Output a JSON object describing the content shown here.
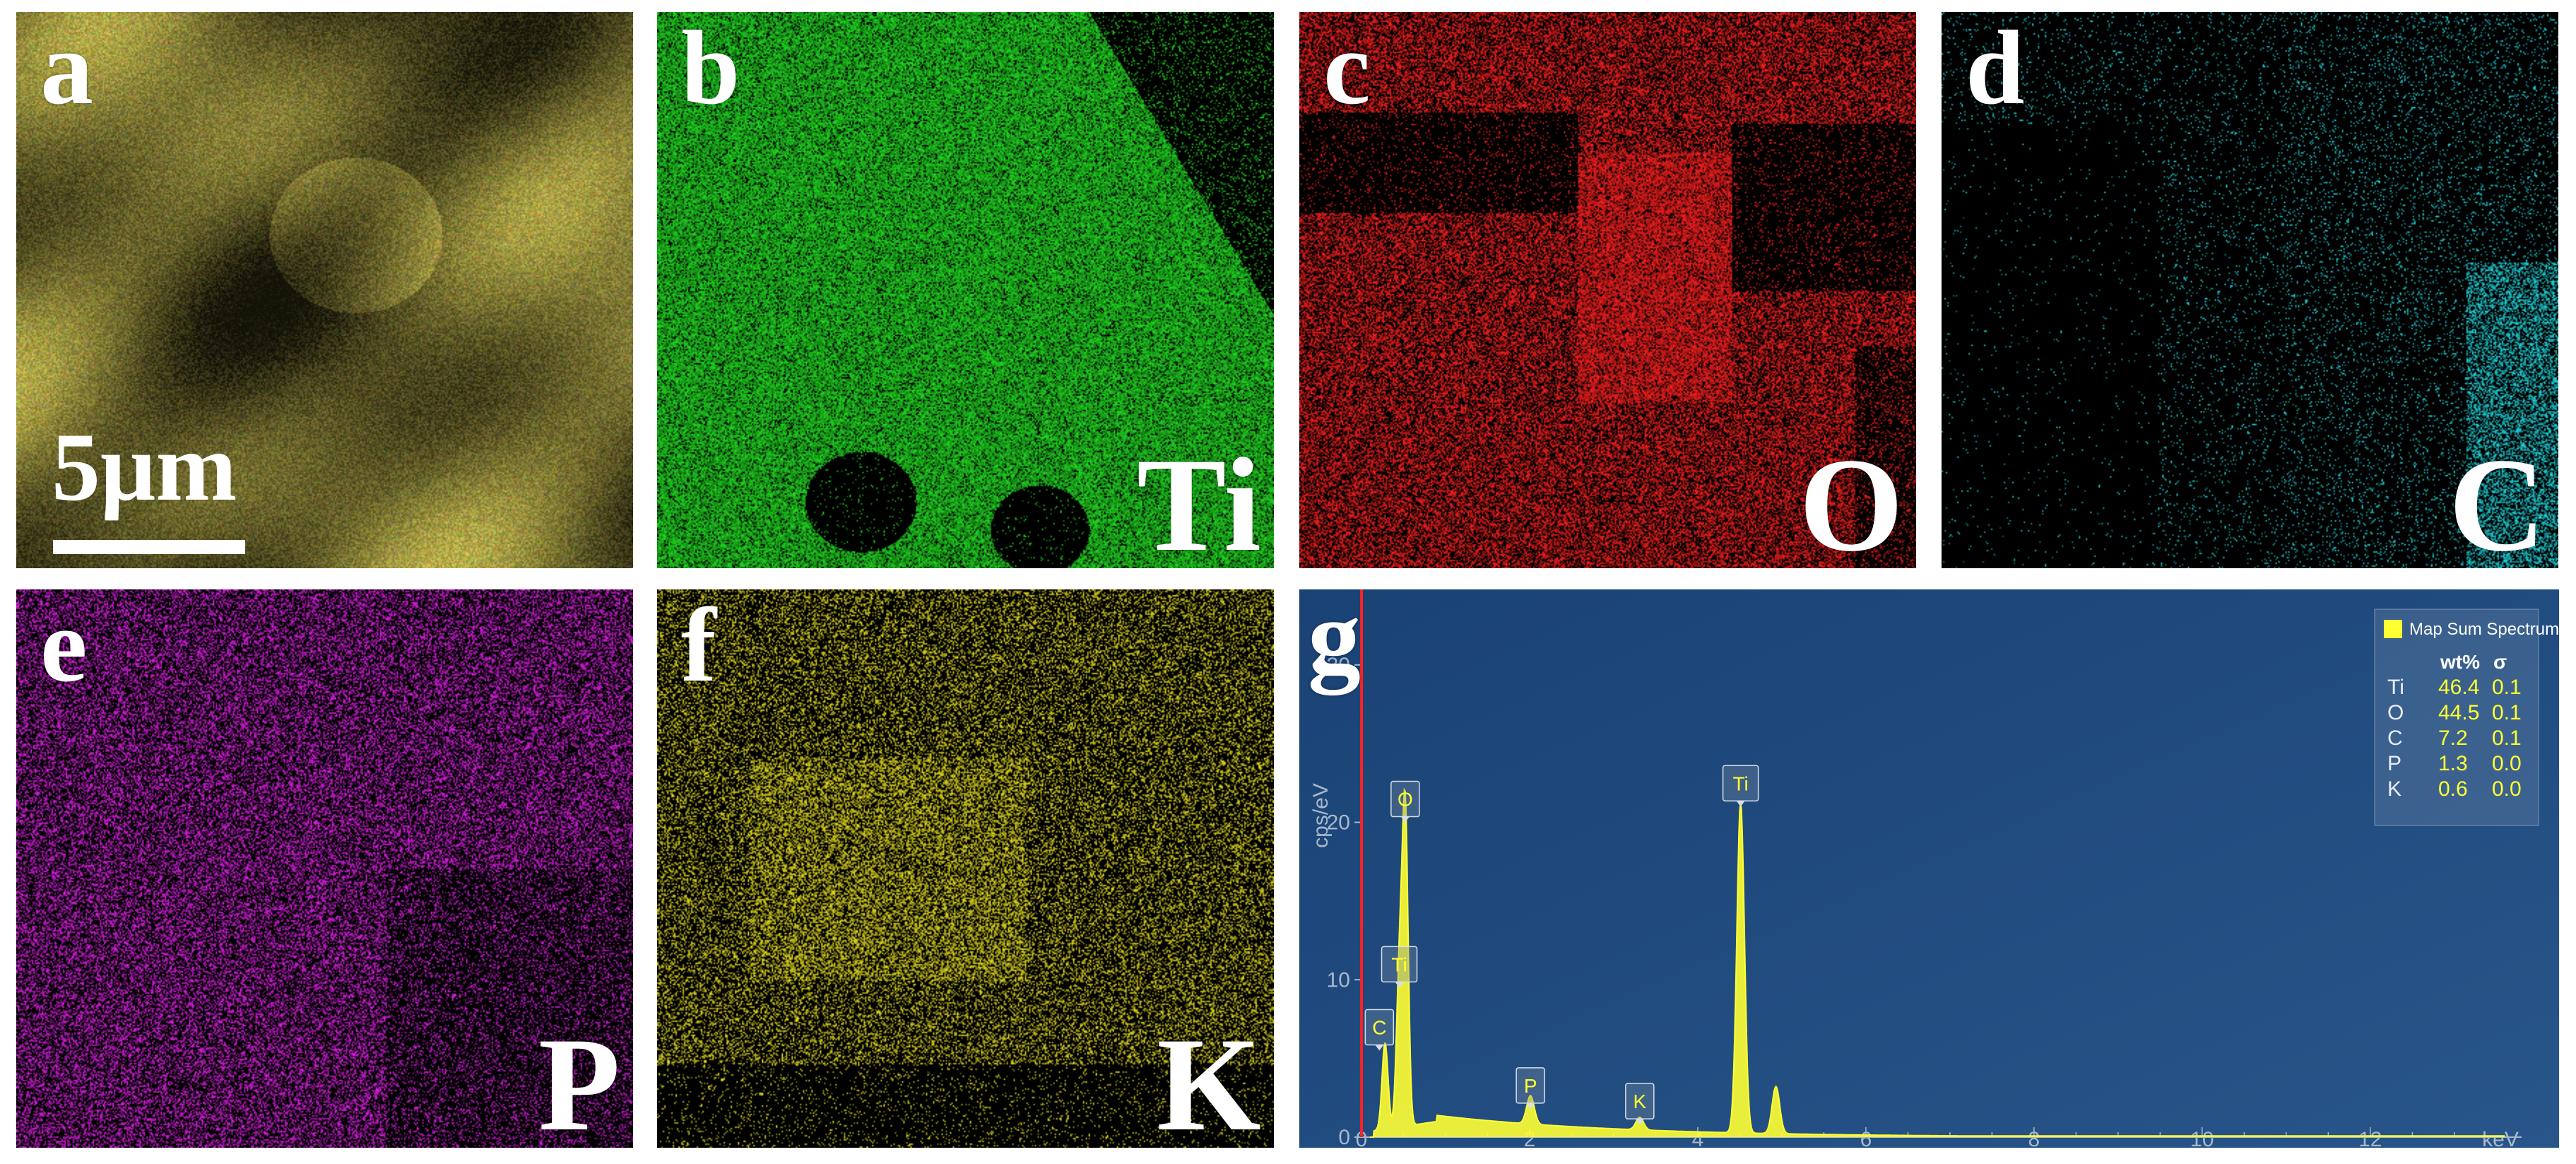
{
  "panels": [
    {
      "key": "a",
      "label": "a",
      "element": "",
      "color": "#8a7a40",
      "type": "sem"
    },
    {
      "key": "b",
      "label": "b",
      "element": "Ti",
      "color": "#22dd22",
      "type": "map"
    },
    {
      "key": "c",
      "label": "c",
      "element": "O",
      "color": "#ff2020",
      "type": "map"
    },
    {
      "key": "d",
      "label": "d",
      "element": "C",
      "color": "#20e0e8",
      "type": "map"
    },
    {
      "key": "e",
      "label": "e",
      "element": "P",
      "color": "#e020e8",
      "type": "map"
    },
    {
      "key": "f",
      "label": "f",
      "element": "K",
      "color": "#e8e020",
      "type": "map"
    }
  ],
  "scale_bar": "5μm",
  "spectrum": {
    "label": "g",
    "legend": "Map Sum Spectrum",
    "table_headers": [
      "wt%",
      "σ"
    ],
    "table_rows": [
      {
        "element": "Ti",
        "wt": "46.4",
        "sigma": "0.1"
      },
      {
        "element": "O",
        "wt": "44.5",
        "sigma": "0.1"
      },
      {
        "element": "C",
        "wt": "7.2",
        "sigma": "0.1"
      },
      {
        "element": "P",
        "wt": "1.3",
        "sigma": "0.0"
      },
      {
        "element": "K",
        "wt": "0.6",
        "sigma": "0.0"
      }
    ],
    "colors": {
      "background": "#1f4a7a",
      "trace": "#ffff33",
      "axis": "#a8b8cc",
      "zero_line": "#ff2222"
    }
  },
  "chart_data": {
    "type": "line",
    "title": "",
    "xlabel": "keV",
    "ylabel": "cps/eV",
    "xlim": [
      0,
      13.8
    ],
    "ylim": [
      0,
      33
    ],
    "x_ticks": [
      0,
      2,
      4,
      6,
      8,
      10,
      12
    ],
    "y_ticks": [
      0,
      10,
      20,
      30
    ],
    "peaks": [
      {
        "label": "C",
        "x": 0.28,
        "y": 5.5
      },
      {
        "label": "Ti",
        "x": 0.45,
        "y": 9.5
      },
      {
        "label": "O",
        "x": 0.52,
        "y": 20
      },
      {
        "label": "P",
        "x": 2.01,
        "y": 1.8
      },
      {
        "label": "K",
        "x": 3.31,
        "y": 0.8
      },
      {
        "label": "Ti",
        "x": 4.51,
        "y": 21
      },
      {
        "label": "",
        "x": 4.93,
        "y": 3
      }
    ]
  }
}
